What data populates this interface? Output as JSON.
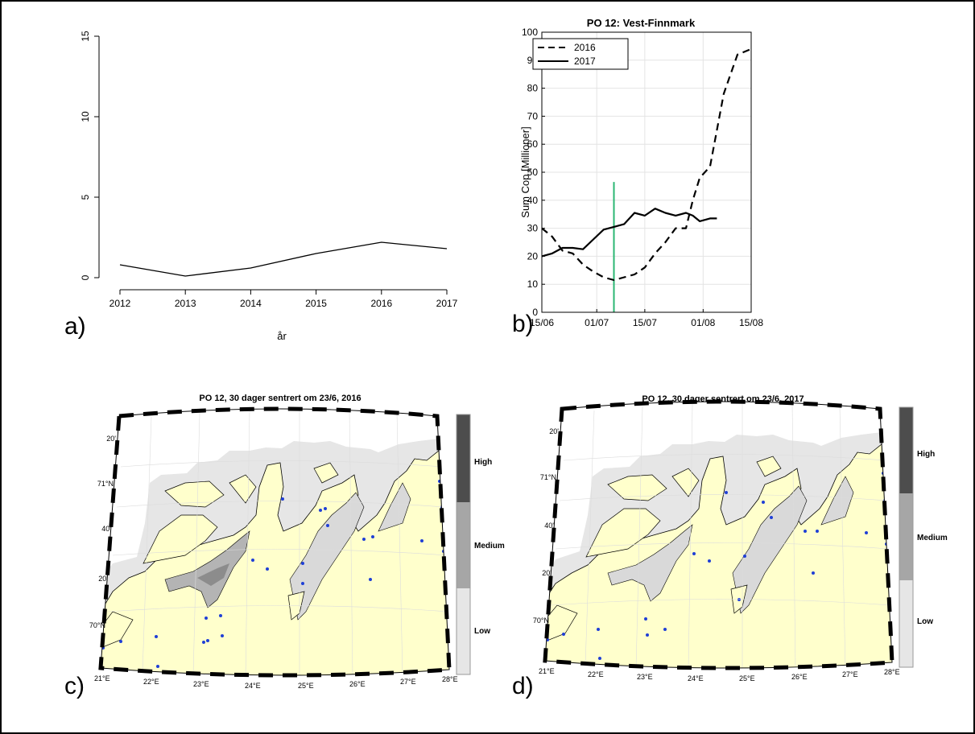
{
  "panel_letters": {
    "a": "a)",
    "b": "b)",
    "c": "c)",
    "d": "d)"
  },
  "colors": {
    "line": "#000000",
    "vline": "#2bb673",
    "land": "#ffffcc",
    "shelf": "#e6e6e6",
    "fjord_high": "#9a9a9a",
    "point": "#1f3fd6",
    "cb_high": "#4d4d4d",
    "cb_medium": "#a6a6a6",
    "cb_low": "#e6e6e6"
  },
  "chart_data": [
    {
      "id": "a",
      "type": "line",
      "title": "",
      "xlabel": "år",
      "ylabel": "",
      "x": [
        2012,
        2013,
        2014,
        2015,
        2016,
        2017
      ],
      "series": [
        {
          "values": [
            0.8,
            0.1,
            0.6,
            1.5,
            2.2,
            1.8
          ]
        }
      ],
      "xticks": [
        "2012",
        "2013",
        "2014",
        "2015",
        "2016",
        "2017"
      ],
      "yticks": [
        "0",
        "5",
        "10",
        "15"
      ],
      "xlim": [
        2012,
        2017
      ],
      "ylim": [
        0,
        15
      ],
      "grid": false
    },
    {
      "id": "b",
      "type": "line",
      "title": "PO 12: Vest-Finnmark",
      "xlabel": "",
      "ylabel": "Sum Cop [Millioner]",
      "xlim": [
        "15/06",
        "15/08"
      ],
      "ylim": [
        0,
        100
      ],
      "xticks": [
        "15/06",
        "01/07",
        "15/07",
        "01/08",
        "15/08"
      ],
      "yticks": [
        "0",
        "10",
        "20",
        "30",
        "40",
        "50",
        "60",
        "70",
        "80",
        "90",
        "100"
      ],
      "grid": true,
      "legend": "top-left",
      "series": [
        {
          "name": "2016",
          "style": "dashed",
          "x": [
            "15/06",
            "18/06",
            "21/06",
            "24/06",
            "27/06",
            "30/06",
            "03/07",
            "06/07",
            "09/07",
            "12/07",
            "15/07",
            "18/07",
            "21/07",
            "24/07",
            "27/07",
            "29/07",
            "31/07",
            "03/08",
            "05/08",
            "07/08",
            "09/08",
            "11/08",
            "13/08",
            "15/08"
          ],
          "values": [
            30,
            27,
            22,
            21,
            17,
            14.5,
            12.5,
            11.5,
            12.5,
            13.5,
            16,
            21,
            25,
            30,
            30,
            40,
            48,
            52,
            65,
            78,
            85,
            92,
            93,
            94
          ]
        },
        {
          "name": "2017",
          "style": "solid",
          "x": [
            "15/06",
            "18/06",
            "21/06",
            "24/06",
            "27/06",
            "30/06",
            "03/07",
            "06/07",
            "09/07",
            "12/07",
            "15/07",
            "18/07",
            "21/07",
            "24/07",
            "27/07",
            "29/07",
            "31/07",
            "03/08",
            "05/08"
          ],
          "values": [
            20,
            21,
            23,
            23,
            22.5,
            26,
            29.5,
            30.5,
            31.5,
            35.5,
            34.5,
            37,
            35.5,
            34.5,
            35.5,
            34.5,
            32.5,
            33.5,
            33.5
          ]
        }
      ],
      "vline": {
        "x": "06/07",
        "y_top": 46.5
      }
    }
  ],
  "maps": [
    {
      "id": "c",
      "title": "PO 12, 30 dager sentrert om 23/6, 2016",
      "lon_ticks": [
        "21°E",
        "22°E",
        "23°E",
        "24°E",
        "25°E",
        "26°E",
        "27°E",
        "28°E"
      ],
      "lat_ticks": [
        "20'",
        "71°N",
        "40'",
        "20'",
        "70°N"
      ],
      "colorbar": [
        "High",
        "Medium",
        "Low"
      ]
    },
    {
      "id": "d",
      "title": "PO 12, 30 dager sentrert om 23/6, 2017",
      "lon_ticks": [
        "21°E",
        "22°E",
        "23°E",
        "24°E",
        "25°E",
        "26°E",
        "27°E",
        "28°E"
      ],
      "lat_ticks": [
        "20'",
        "71°N",
        "40'",
        "20'",
        "70°N"
      ],
      "colorbar": [
        "High",
        "Medium",
        "Low"
      ]
    }
  ]
}
